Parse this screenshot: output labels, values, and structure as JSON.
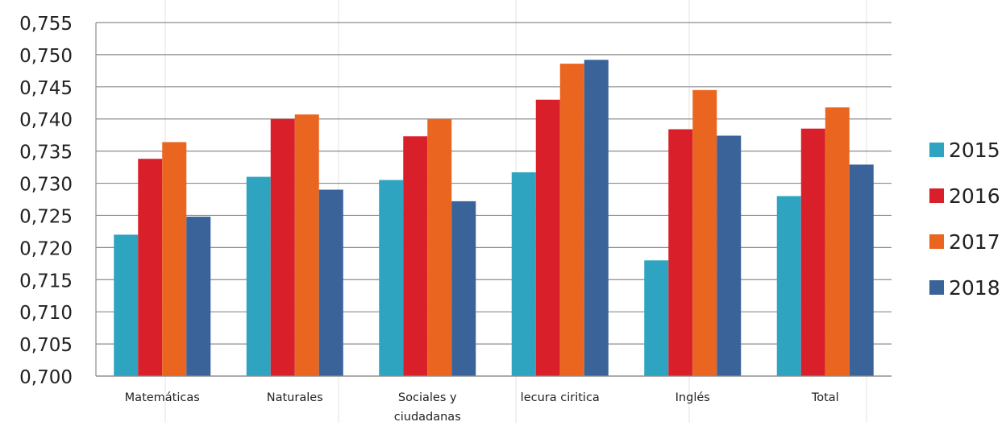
{
  "chart_data": {
    "type": "bar",
    "categories": [
      "Matemáticas",
      "Naturales",
      "Sociales y ciudadanas",
      "lecura ciritica",
      "Inglés",
      "Total"
    ],
    "category_lines": [
      [
        "Matemáticas"
      ],
      [
        "Naturales"
      ],
      [
        "Sociales y",
        "ciudadanas"
      ],
      [
        "lecura ciritica"
      ],
      [
        "Inglés"
      ],
      [
        "Total"
      ]
    ],
    "series": [
      {
        "name": "2015",
        "color": "#2ea4c0",
        "values": [
          0.722,
          0.731,
          0.7305,
          0.7317,
          0.718,
          0.728
        ]
      },
      {
        "name": "2016",
        "color": "#d9202a",
        "values": [
          0.7338,
          0.74,
          0.7373,
          0.743,
          0.7384,
          0.7385
        ]
      },
      {
        "name": "2017",
        "color": "#ea6620",
        "values": [
          0.7364,
          0.7407,
          0.74,
          0.7486,
          0.7445,
          0.7418
        ]
      },
      {
        "name": "2018",
        "color": "#3a6399",
        "values": [
          0.7248,
          0.729,
          0.7272,
          0.7492,
          0.7374,
          0.7329
        ]
      }
    ],
    "ylim": [
      0.7,
      0.755
    ],
    "yticks": [
      "0,700",
      "0,705",
      "0,710",
      "0,715",
      "0,720",
      "0,725",
      "0,730",
      "0,735",
      "0,740",
      "0,745",
      "0,750",
      "0,755"
    ],
    "grid": true,
    "legend_position": "right",
    "xlabel": "",
    "ylabel": "",
    "title": ""
  }
}
